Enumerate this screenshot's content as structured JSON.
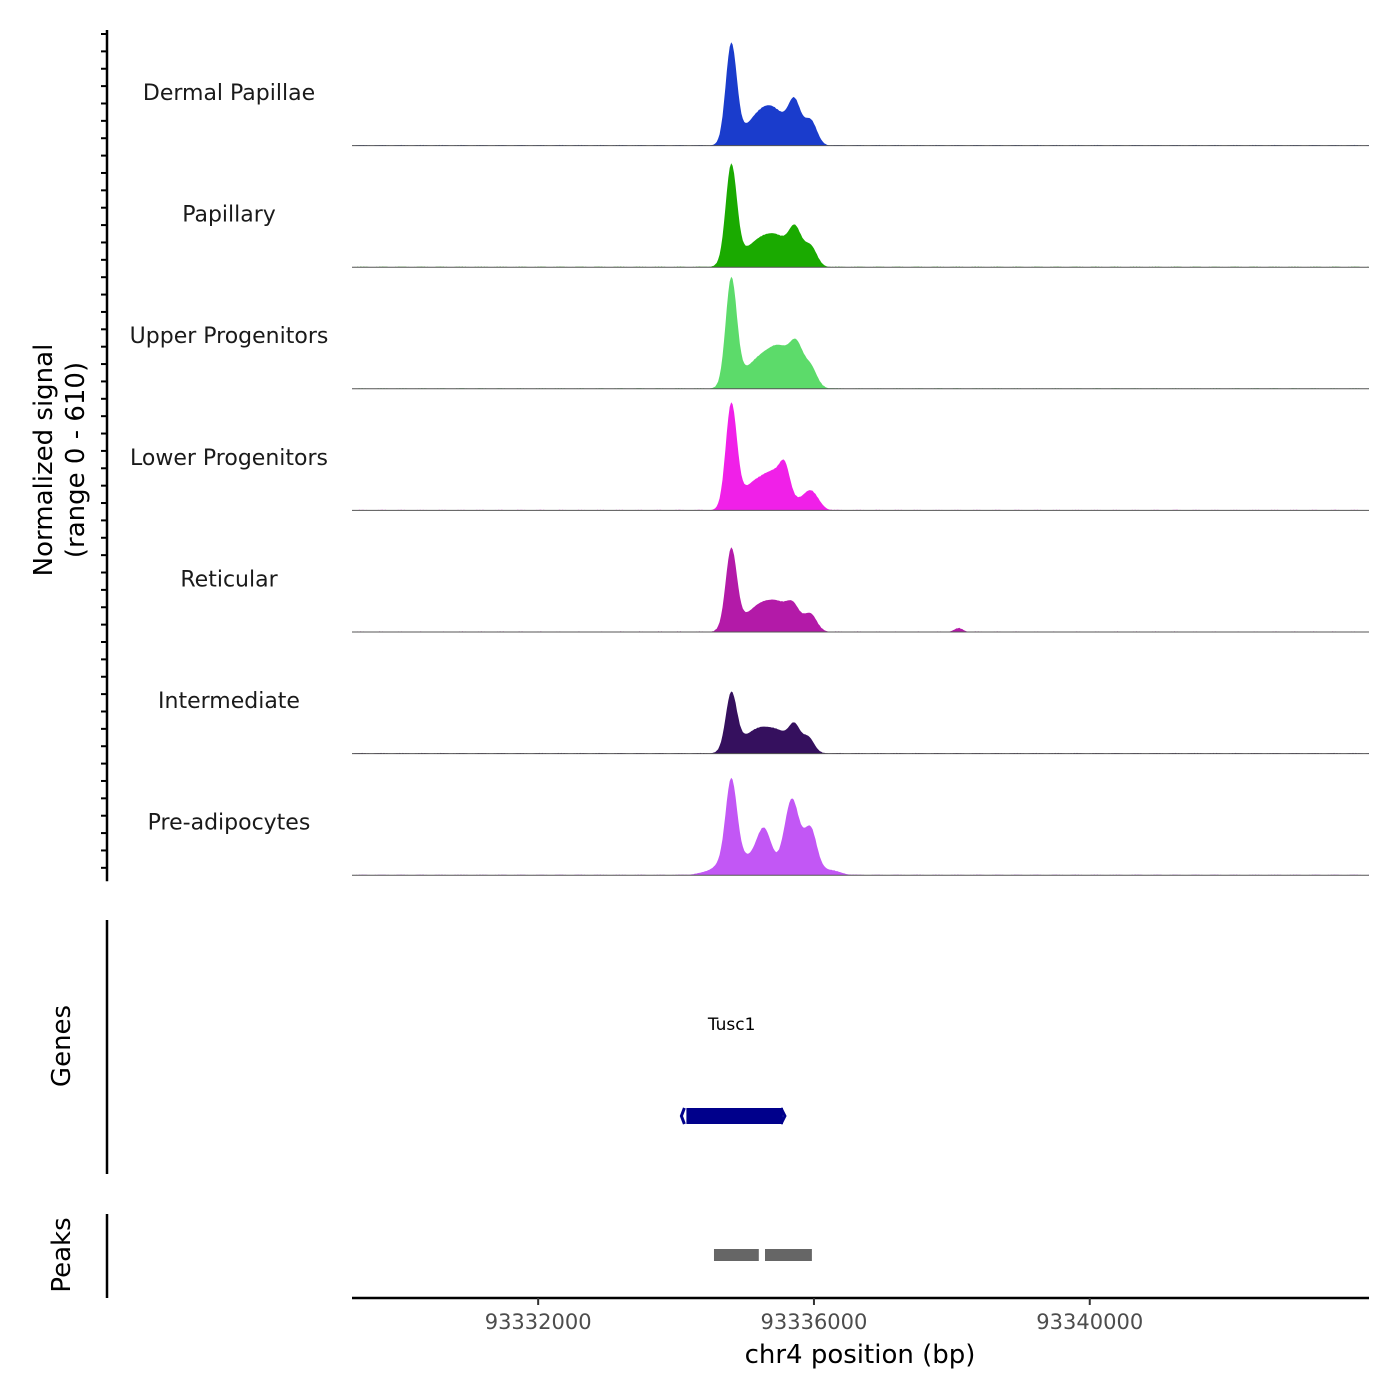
{
  "chart_data": {
    "type": "area",
    "title": "",
    "ylabel_line1": "Normalized signal",
    "ylabel_line2": "(range 0 - 610)",
    "xlabel": "chr4 position (bp)",
    "xlim": [
      93329300,
      93344050
    ],
    "xticks": [
      93332000,
      93336000,
      93340000
    ],
    "xtick_labels": [
      "93332000",
      "93336000",
      "93340000"
    ],
    "ylim": [
      0,
      610
    ],
    "tracks": [
      {
        "name": "Dermal Papillae",
        "color": "#1a3ccc",
        "peaks": [
          {
            "center": 93334800,
            "sigma": 80,
            "height": 560
          },
          {
            "center": 93335100,
            "sigma": 180,
            "height": 90
          },
          {
            "center": 93335400,
            "sigma": 200,
            "height": 200
          },
          {
            "center": 93335720,
            "sigma": 90,
            "height": 210
          },
          {
            "center": 93335950,
            "sigma": 90,
            "height": 140
          }
        ]
      },
      {
        "name": "Papillary",
        "color": "#1aaa00",
        "peaks": [
          {
            "center": 93334800,
            "sigma": 80,
            "height": 550
          },
          {
            "center": 93335100,
            "sigma": 220,
            "height": 90
          },
          {
            "center": 93335450,
            "sigma": 220,
            "height": 160
          },
          {
            "center": 93335730,
            "sigma": 90,
            "height": 160
          },
          {
            "center": 93335950,
            "sigma": 90,
            "height": 110
          }
        ]
      },
      {
        "name": "Upper Progenitors",
        "color": "#5cdb6a",
        "peaks": [
          {
            "center": 93334800,
            "sigma": 80,
            "height": 600
          },
          {
            "center": 93335100,
            "sigma": 200,
            "height": 100
          },
          {
            "center": 93335500,
            "sigma": 230,
            "height": 230
          },
          {
            "center": 93335750,
            "sigma": 90,
            "height": 140
          },
          {
            "center": 93335950,
            "sigma": 90,
            "height": 100
          }
        ]
      },
      {
        "name": "Lower Progenitors",
        "color": "#f020e8",
        "peaks": [
          {
            "center": 93334800,
            "sigma": 80,
            "height": 580
          },
          {
            "center": 93335100,
            "sigma": 180,
            "height": 130
          },
          {
            "center": 93335450,
            "sigma": 180,
            "height": 200
          },
          {
            "center": 93335580,
            "sigma": 70,
            "height": 120
          },
          {
            "center": 93335950,
            "sigma": 110,
            "height": 110
          }
        ]
      },
      {
        "name": "Reticular",
        "color": "#b31aa8",
        "peaks": [
          {
            "center": 93334800,
            "sigma": 80,
            "height": 450
          },
          {
            "center": 93335100,
            "sigma": 200,
            "height": 80
          },
          {
            "center": 93335450,
            "sigma": 230,
            "height": 160
          },
          {
            "center": 93335700,
            "sigma": 90,
            "height": 80
          },
          {
            "center": 93335950,
            "sigma": 90,
            "height": 90
          },
          {
            "center": 93338100,
            "sigma": 60,
            "height": 20
          }
        ]
      },
      {
        "name": "Intermediate",
        "color": "#35105e",
        "peaks": [
          {
            "center": 93334800,
            "sigma": 80,
            "height": 320
          },
          {
            "center": 93335100,
            "sigma": 200,
            "height": 90
          },
          {
            "center": 93335450,
            "sigma": 230,
            "height": 120
          },
          {
            "center": 93335720,
            "sigma": 80,
            "height": 110
          },
          {
            "center": 93335920,
            "sigma": 80,
            "height": 80
          }
        ]
      },
      {
        "name": "Pre-adipocytes",
        "color": "#c257f5",
        "peaks": [
          {
            "center": 93334800,
            "sigma": 80,
            "height": 450
          },
          {
            "center": 93334900,
            "sigma": 260,
            "height": 110
          },
          {
            "center": 93335280,
            "sigma": 110,
            "height": 230
          },
          {
            "center": 93335680,
            "sigma": 110,
            "height": 430
          },
          {
            "center": 93335950,
            "sigma": 90,
            "height": 250
          },
          {
            "center": 93336200,
            "sigma": 150,
            "height": 30
          }
        ]
      }
    ],
    "genes": {
      "label": "Genes",
      "items": [
        {
          "name": "Tusc1",
          "start": 93334150,
          "end": 93335550,
          "color": "#00008b",
          "strand": "-"
        }
      ]
    },
    "peaks_track": {
      "label": "Peaks",
      "color": "#666666",
      "items": [
        [
          93334550,
          93335200
        ],
        [
          93335290,
          93335970
        ]
      ]
    }
  }
}
